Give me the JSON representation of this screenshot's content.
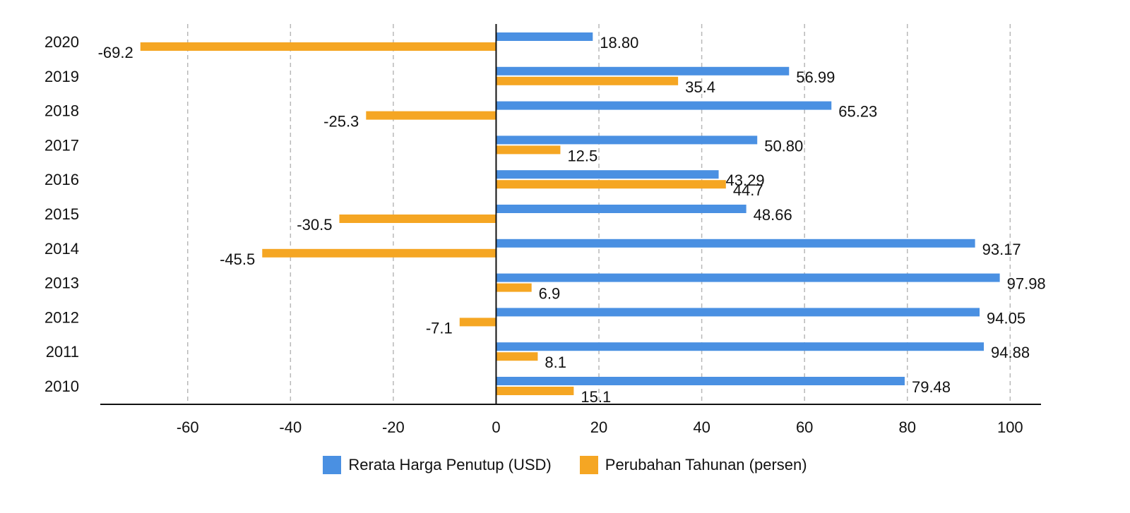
{
  "chart_data": {
    "type": "bar",
    "orientation": "horizontal",
    "categories": [
      "2020",
      "2019",
      "2018",
      "2017",
      "2016",
      "2015",
      "2014",
      "2013",
      "2012",
      "2011",
      "2010"
    ],
    "series": [
      {
        "name": "Rerata Harga Penutup (USD)",
        "color": "#4a90e2",
        "values": [
          18.8,
          56.99,
          65.23,
          50.8,
          43.29,
          48.66,
          93.17,
          97.98,
          94.05,
          94.88,
          79.48
        ],
        "labels": [
          "18.80",
          "56.99",
          "65.23",
          "50.80",
          "43.29",
          "48.66",
          "93.17",
          "97.98",
          "94.05",
          "94.88",
          "79.48"
        ]
      },
      {
        "name": "Perubahan Tahunan (persen)",
        "color": "#f5a623",
        "values": [
          -69.2,
          35.4,
          -25.3,
          12.5,
          44.7,
          -30.5,
          -45.5,
          6.9,
          -7.1,
          8.1,
          15.1
        ],
        "labels": [
          "-69.2",
          "35.4",
          "-25.3",
          "12.5",
          "44.7",
          "-30.5",
          "-45.5",
          "6.9",
          "-7.1",
          "8.1",
          "15.1"
        ]
      }
    ],
    "xlim": [
      -77,
      106
    ],
    "xticks": [
      -60,
      -40,
      -20,
      0,
      20,
      40,
      60,
      80,
      100
    ],
    "xtick_labels": [
      "-60",
      "-40",
      "-20",
      "0",
      "20",
      "40",
      "60",
      "80",
      "100"
    ],
    "grid": "vertical-dashed",
    "legend_position": "bottom-center",
    "title": "",
    "xlabel": "",
    "ylabel": ""
  }
}
